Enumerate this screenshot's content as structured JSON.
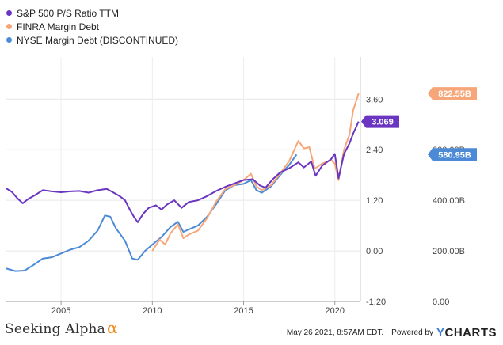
{
  "legend": {
    "items": [
      {
        "label": "S&P 500 P/S Ratio TTM",
        "color": "#6a35c0"
      },
      {
        "label": "FINRA Margin Debt",
        "color": "#f7a679"
      },
      {
        "label": "NYSE Margin Debt (DISCONTINUED)",
        "color": "#4d8ad6"
      }
    ]
  },
  "footer": {
    "brand": "Seeking Alpha",
    "brand_symbol": "α",
    "timestamp": "May 26 2021, 8:57AM EDT.",
    "powered_by": "Powered by",
    "logo_y": "Y",
    "logo_rest": "CHARTS"
  },
  "chart_data": {
    "type": "line",
    "x_ticks": [
      "2005",
      "2010",
      "2015",
      "2020"
    ],
    "x_range": [
      2002.0,
      2021.4
    ],
    "left_axis": {
      "ticks": [
        "3.60",
        "2.40",
        "1.20",
        "0.00",
        "-1.20"
      ],
      "range": [
        -1.2,
        4.6
      ]
    },
    "right_axis": {
      "ticks": [
        "600.00B",
        "400.00B",
        "200.00B",
        "0.00"
      ],
      "range": [
        0,
        966.7
      ]
    },
    "series": [
      {
        "name": "S&P 500 P/S Ratio TTM",
        "color": "#6a35c0",
        "axis": "left",
        "end_label": "3.069",
        "points": [
          [
            2002.0,
            1.48
          ],
          [
            2002.3,
            1.4
          ],
          [
            2002.6,
            1.25
          ],
          [
            2002.9,
            1.13
          ],
          [
            2003.2,
            1.23
          ],
          [
            2003.6,
            1.33
          ],
          [
            2004.0,
            1.44
          ],
          [
            2004.5,
            1.41
          ],
          [
            2005.0,
            1.39
          ],
          [
            2005.5,
            1.41
          ],
          [
            2006.0,
            1.42
          ],
          [
            2006.5,
            1.38
          ],
          [
            2007.0,
            1.44
          ],
          [
            2007.5,
            1.47
          ],
          [
            2007.8,
            1.4
          ],
          [
            2008.2,
            1.3
          ],
          [
            2008.5,
            1.2
          ],
          [
            2008.8,
            0.95
          ],
          [
            2009.0,
            0.8
          ],
          [
            2009.2,
            0.68
          ],
          [
            2009.5,
            0.88
          ],
          [
            2009.8,
            1.02
          ],
          [
            2010.2,
            1.08
          ],
          [
            2010.5,
            0.98
          ],
          [
            2010.8,
            1.1
          ],
          [
            2011.2,
            1.2
          ],
          [
            2011.6,
            1.02
          ],
          [
            2012.0,
            1.16
          ],
          [
            2012.5,
            1.2
          ],
          [
            2013.0,
            1.3
          ],
          [
            2013.5,
            1.42
          ],
          [
            2014.0,
            1.52
          ],
          [
            2014.5,
            1.6
          ],
          [
            2015.0,
            1.68
          ],
          [
            2015.5,
            1.7
          ],
          [
            2015.9,
            1.55
          ],
          [
            2016.2,
            1.5
          ],
          [
            2016.6,
            1.7
          ],
          [
            2017.0,
            1.86
          ],
          [
            2017.5,
            1.96
          ],
          [
            2018.0,
            2.1
          ],
          [
            2018.3,
            1.98
          ],
          [
            2018.7,
            2.12
          ],
          [
            2018.95,
            1.78
          ],
          [
            2019.3,
            2.02
          ],
          [
            2019.8,
            2.18
          ],
          [
            2020.0,
            2.3
          ],
          [
            2020.2,
            1.72
          ],
          [
            2020.5,
            2.3
          ],
          [
            2020.8,
            2.55
          ],
          [
            2021.0,
            2.78
          ],
          [
            2021.3,
            3.069
          ]
        ]
      },
      {
        "name": "FINRA Margin Debt",
        "color": "#f7a679",
        "axis": "right",
        "end_label": "822.55B",
        "points": [
          [
            2010.0,
            200
          ],
          [
            2010.4,
            245
          ],
          [
            2010.7,
            225
          ],
          [
            2011.0,
            270
          ],
          [
            2011.4,
            305
          ],
          [
            2011.7,
            250
          ],
          [
            2012.0,
            265
          ],
          [
            2012.5,
            280
          ],
          [
            2013.0,
            330
          ],
          [
            2013.5,
            395
          ],
          [
            2014.0,
            445
          ],
          [
            2014.5,
            460
          ],
          [
            2015.0,
            480
          ],
          [
            2015.4,
            505
          ],
          [
            2015.7,
            455
          ],
          [
            2016.0,
            440
          ],
          [
            2016.5,
            460
          ],
          [
            2017.0,
            505
          ],
          [
            2017.5,
            555
          ],
          [
            2018.0,
            635
          ],
          [
            2018.3,
            605
          ],
          [
            2018.6,
            610
          ],
          [
            2018.9,
            525
          ],
          [
            2019.3,
            545
          ],
          [
            2019.8,
            560
          ],
          [
            2020.0,
            545
          ],
          [
            2020.2,
            480
          ],
          [
            2020.5,
            600
          ],
          [
            2020.8,
            660
          ],
          [
            2021.0,
            755
          ],
          [
            2021.3,
            822.55
          ]
        ]
      },
      {
        "name": "NYSE Margin Debt (DISCONTINUED)",
        "color": "#4d8ad6",
        "axis": "right",
        "end_label": "580.95B",
        "points": [
          [
            2002.0,
            130
          ],
          [
            2002.5,
            120
          ],
          [
            2003.0,
            122
          ],
          [
            2003.5,
            145
          ],
          [
            2004.0,
            170
          ],
          [
            2004.5,
            175
          ],
          [
            2005.0,
            190
          ],
          [
            2005.5,
            205
          ],
          [
            2006.0,
            215
          ],
          [
            2006.5,
            240
          ],
          [
            2007.0,
            280
          ],
          [
            2007.4,
            340
          ],
          [
            2007.7,
            335
          ],
          [
            2008.0,
            290
          ],
          [
            2008.5,
            240
          ],
          [
            2008.9,
            170
          ],
          [
            2009.2,
            165
          ],
          [
            2009.6,
            200
          ],
          [
            2010.0,
            225
          ],
          [
            2010.5,
            255
          ],
          [
            2011.0,
            295
          ],
          [
            2011.4,
            315
          ],
          [
            2011.7,
            275
          ],
          [
            2012.0,
            285
          ],
          [
            2012.5,
            300
          ],
          [
            2013.0,
            335
          ],
          [
            2013.5,
            385
          ],
          [
            2014.0,
            440
          ],
          [
            2014.5,
            460
          ],
          [
            2015.0,
            465
          ],
          [
            2015.4,
            480
          ],
          [
            2015.7,
            440
          ],
          [
            2016.0,
            430
          ],
          [
            2016.5,
            455
          ],
          [
            2017.0,
            500
          ],
          [
            2017.5,
            540
          ],
          [
            2017.9,
            580.95
          ]
        ]
      }
    ]
  }
}
